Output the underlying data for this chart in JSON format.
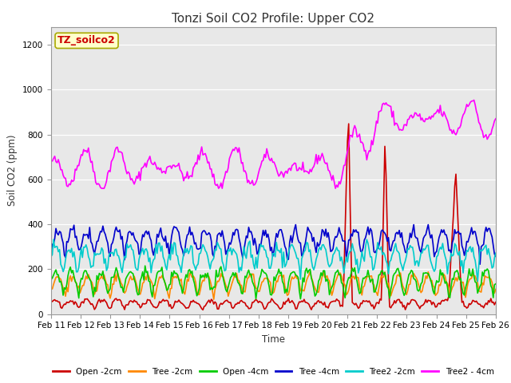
{
  "title": "Tonzi Soil CO2 Profile: Upper CO2",
  "ylabel": "Soil CO2 (ppm)",
  "xlabel": "Time",
  "watermark": "TZ_soilco2",
  "ylim": [
    0,
    1280
  ],
  "yticks": [
    0,
    200,
    400,
    600,
    800,
    1000,
    1200
  ],
  "bg_color": "#e8e8e8",
  "series": {
    "Open -2cm": {
      "color": "#cc0000",
      "lw": 1.2
    },
    "Tree -2cm": {
      "color": "#ff8800",
      "lw": 1.2
    },
    "Open -4cm": {
      "color": "#00cc00",
      "lw": 1.2
    },
    "Tree -4cm": {
      "color": "#0000cc",
      "lw": 1.2
    },
    "Tree2 -2cm": {
      "color": "#00cccc",
      "lw": 1.2
    },
    "Tree2 - 4cm": {
      "color": "#ff00ff",
      "lw": 1.2
    }
  },
  "xtick_labels": [
    "Feb 11",
    "Feb 12",
    "Feb 13",
    "Feb 14",
    "Feb 15",
    "Feb 16",
    "Feb 17",
    "Feb 18",
    "Feb 19",
    "Feb 20",
    "Feb 21",
    "Feb 22",
    "Feb 23",
    "Feb 24",
    "Feb 25",
    "Feb 26"
  ],
  "n_points": 370
}
